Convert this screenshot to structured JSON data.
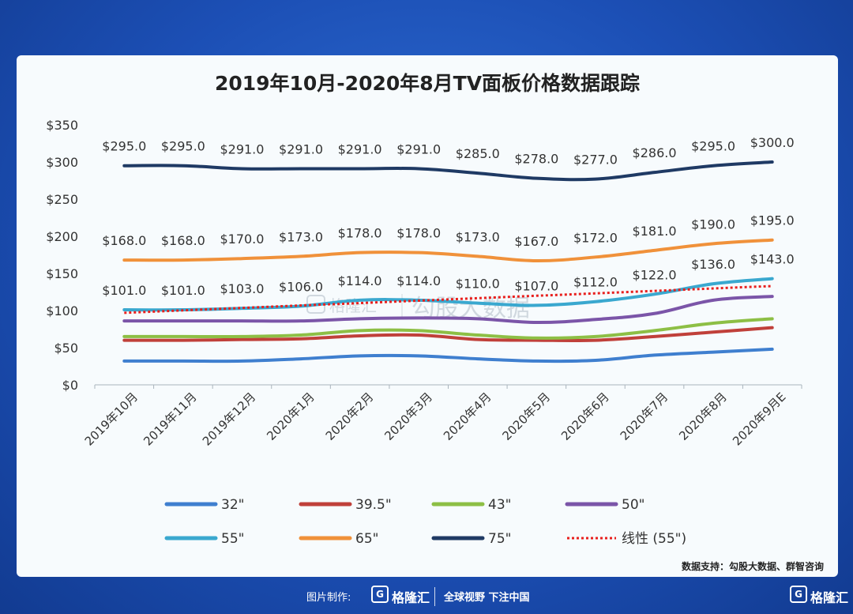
{
  "footer": {
    "credit": "图片制作:",
    "brand": "格隆汇",
    "slogan": "全球视野 下注中国",
    "logo_glyph": "G"
  },
  "watermark": {
    "left": "格隆汇",
    "right": "勾股大数据"
  },
  "chart_data": {
    "type": "line",
    "title": "2019年10月-2020年8月TV面板价格数据跟踪",
    "source": "数据支持：勾股大数据、群智咨询",
    "categories": [
      "2019年10月",
      "2019年11月",
      "2019年12月",
      "2020年1月",
      "2020年2月",
      "2020年3月",
      "2020年4月",
      "2020年5月",
      "2020年6月",
      "2020年7月",
      "2020年8月",
      "2020年9月E"
    ],
    "ylim": [
      0,
      350
    ],
    "yticks": [
      "$0",
      "$50",
      "$100",
      "$150",
      "$200",
      "$250",
      "$300",
      "$350"
    ],
    "series": [
      {
        "name": "32\"",
        "color": "#3f7fcf",
        "values": [
          32,
          32,
          32,
          35,
          39,
          39,
          35,
          32,
          33,
          40,
          44,
          48
        ],
        "labeled": false
      },
      {
        "name": "39.5\"",
        "color": "#c0403a",
        "values": [
          60,
          60,
          61,
          62,
          66,
          67,
          61,
          60,
          60,
          65,
          71,
          77
        ],
        "labeled": false
      },
      {
        "name": "43\"",
        "color": "#8dbf45",
        "values": [
          65,
          65,
          65,
          67,
          73,
          73,
          67,
          63,
          65,
          73,
          83,
          89
        ],
        "labeled": false
      },
      {
        "name": "50\"",
        "color": "#7b55a8",
        "values": [
          86,
          86,
          86,
          86,
          89,
          90,
          89,
          84,
          88,
          96,
          114,
          119
        ],
        "labeled": false
      },
      {
        "name": "55\"",
        "color": "#3aa8cf",
        "values": [
          101,
          101,
          103,
          106,
          114,
          114,
          110,
          107,
          112,
          122,
          136,
          143
        ],
        "labeled": true
      },
      {
        "name": "65\"",
        "color": "#f0913a",
        "values": [
          168,
          168,
          170,
          173,
          178,
          178,
          173,
          167,
          172,
          181,
          190,
          195
        ],
        "labeled": true
      },
      {
        "name": "75\"",
        "color": "#1f3a64",
        "values": [
          295,
          295,
          291,
          291,
          291,
          291,
          285,
          278,
          277,
          286,
          295,
          300
        ],
        "labeled": true
      }
    ],
    "trendline": {
      "name": "线性 (55\")",
      "color": "#e8201e",
      "start": 97,
      "end": 133
    },
    "labels": {
      "55\"": [
        "$101.0",
        "$101.0",
        "$103.0",
        "$106.0",
        "$114.0",
        "$114.0",
        "$110.0",
        "$107.0",
        "$112.0",
        "$122.0",
        "$136.0",
        "$143.0"
      ],
      "65\"": [
        "$168.0",
        "$168.0",
        "$170.0",
        "$173.0",
        "$178.0",
        "$178.0",
        "$173.0",
        "$167.0",
        "$172.0",
        "$181.0",
        "$190.0",
        "$195.0"
      ],
      "75\"": [
        "$295.0",
        "$295.0",
        "$291.0",
        "$291.0",
        "$291.0",
        "$291.0",
        "$285.0",
        "$278.0",
        "$277.0",
        "$286.0",
        "$295.0",
        "$300.0"
      ]
    }
  }
}
